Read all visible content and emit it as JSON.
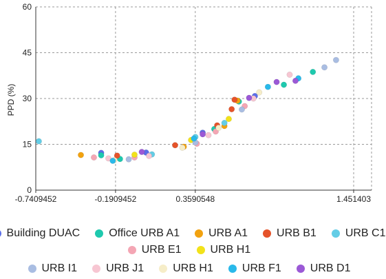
{
  "chart_data": {
    "type": "scatter",
    "ylabel": "PPD (%)",
    "xlabel": "",
    "xlim": [
      -0.7409452,
      1.5
    ],
    "ylim": [
      0,
      60
    ],
    "xticks": [
      -0.7409452,
      -0.1909452,
      0.3590548,
      1.451403
    ],
    "xtick_labels": [
      "-0.7409452",
      "-0.1909452",
      "0.3590548",
      "1.451403"
    ],
    "yticks": [
      0,
      15,
      30,
      45,
      60
    ],
    "ytick_labels": [
      "0",
      "15",
      "30",
      "45",
      "60"
    ],
    "grid": true,
    "legend_position": "bottom",
    "series": [
      {
        "name": "Building DUAC",
        "color": "#5b6ee8",
        "points": [
          [
            -0.29,
            12.2
          ],
          [
            0.02,
            12.3
          ],
          [
            0.41,
            18.8
          ],
          [
            0.77,
            30.8
          ]
        ]
      },
      {
        "name": "Office URB A1",
        "color": "#1ec9ae",
        "points": [
          [
            -0.29,
            11.4
          ],
          [
            -0.16,
            10.2
          ],
          [
            0.49,
            20.0
          ],
          [
            0.66,
            29.0
          ],
          [
            0.97,
            34.5
          ],
          [
            1.17,
            38.7
          ]
        ]
      },
      {
        "name": "URB A1",
        "color": "#f2a20f",
        "points": [
          [
            -0.43,
            11.5
          ],
          [
            0.28,
            14.2
          ],
          [
            0.56,
            21.0
          ],
          [
            0.65,
            29.3
          ]
        ]
      },
      {
        "name": "URB B1",
        "color": "#e5532a",
        "points": [
          [
            -0.18,
            11.3
          ],
          [
            0.22,
            14.7
          ],
          [
            0.51,
            21.2
          ],
          [
            0.61,
            26.5
          ],
          [
            0.63,
            29.6
          ]
        ]
      },
      {
        "name": "URB C1",
        "color": "#63cde6",
        "points": [
          [
            -0.72,
            16.0
          ],
          [
            0.06,
            11.7
          ],
          [
            0.36,
            17.4
          ],
          [
            0.56,
            22.0
          ]
        ]
      },
      {
        "name": "URB E1",
        "color": "#f4a6b4",
        "points": [
          [
            -0.34,
            10.7
          ],
          [
            -0.06,
            10.7
          ],
          [
            0.37,
            15.2
          ],
          [
            0.5,
            19.2
          ],
          [
            0.7,
            27.5
          ]
        ]
      },
      {
        "name": "URB H1",
        "color": "#f2e21a",
        "points": [
          [
            -0.06,
            11.6
          ],
          [
            0.33,
            16.4
          ],
          [
            0.59,
            23.3
          ]
        ]
      },
      {
        "name": "URB I1",
        "color": "#a9bde2",
        "points": [
          [
            -0.1,
            10.1
          ],
          [
            0.36,
            15.6
          ],
          [
            0.68,
            26.4
          ],
          [
            1.25,
            40.2
          ],
          [
            1.33,
            42.6
          ]
        ]
      },
      {
        "name": "URB J1",
        "color": "#f7c6d2",
        "points": [
          [
            -0.24,
            10.4
          ],
          [
            0.04,
            11.2
          ],
          [
            0.45,
            18.0
          ],
          [
            0.76,
            30.0
          ],
          [
            1.01,
            37.8
          ]
        ]
      },
      {
        "name": "URB H1",
        "color": "#f6edc8",
        "points": [
          [
            -0.2,
            9.8
          ],
          [
            0.27,
            13.9
          ],
          [
            0.52,
            20.4
          ],
          [
            0.8,
            32.0
          ]
        ]
      },
      {
        "name": "URB F1",
        "color": "#29b9ea",
        "points": [
          [
            -0.21,
            9.6
          ],
          [
            0.35,
            16.9
          ],
          [
            0.86,
            33.8
          ],
          [
            1.07,
            36.6
          ]
        ]
      },
      {
        "name": "URB D1",
        "color": "#9b59d6",
        "points": [
          [
            -0.01,
            12.5
          ],
          [
            0.41,
            18.3
          ],
          [
            0.73,
            30.2
          ],
          [
            0.92,
            35.4
          ],
          [
            1.05,
            35.8
          ]
        ]
      }
    ]
  },
  "legend_rows": [
    [
      0,
      1,
      2,
      3,
      4
    ],
    [
      5,
      6
    ],
    [
      7,
      8,
      9,
      10,
      11
    ]
  ]
}
